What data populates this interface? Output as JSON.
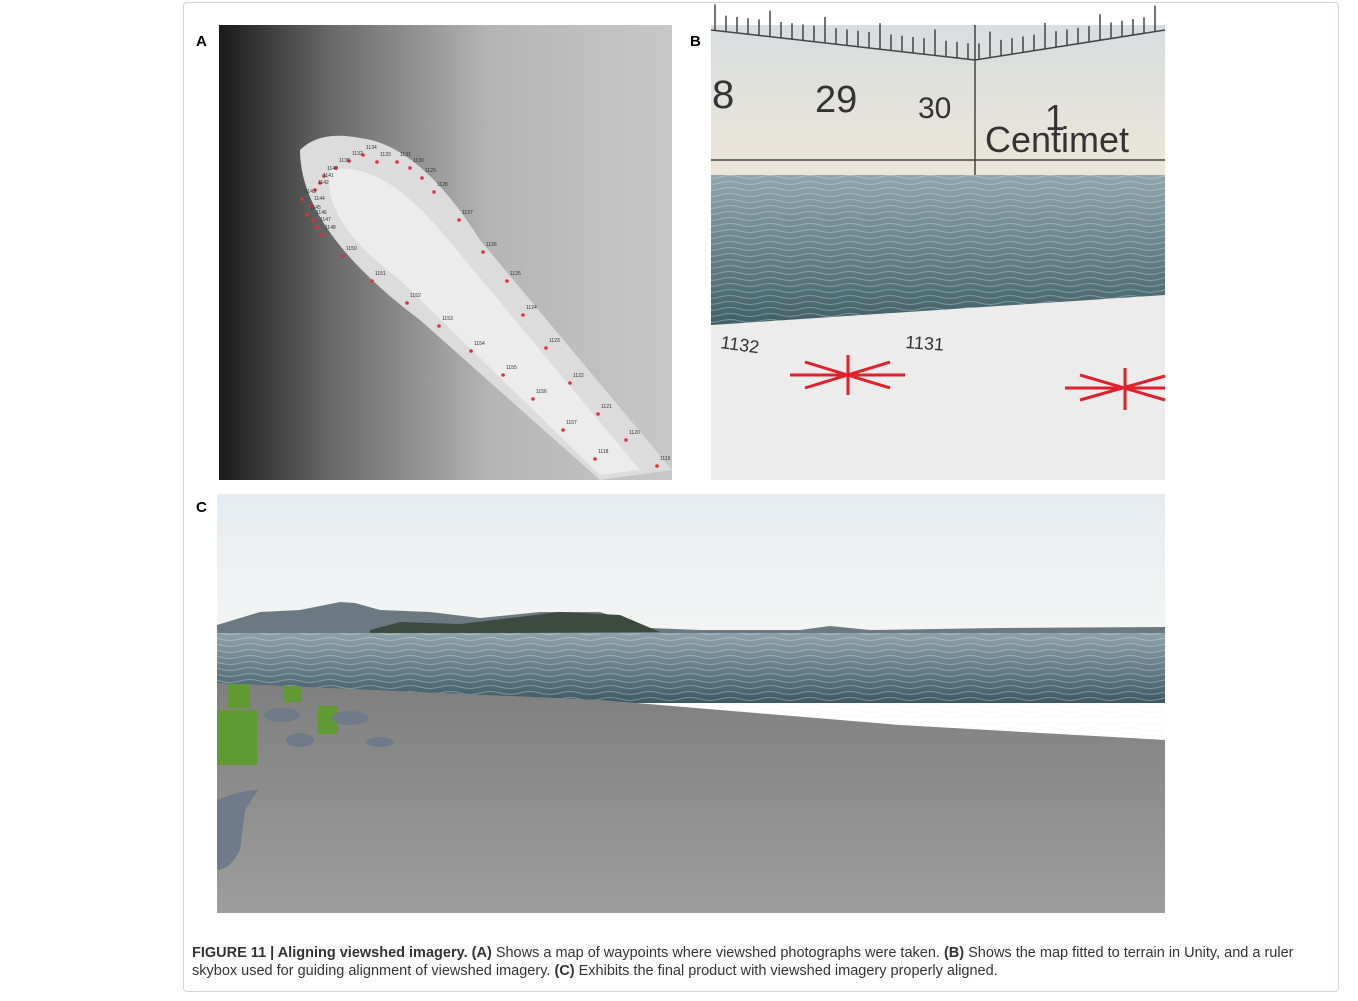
{
  "panels": {
    "A": {
      "label": "A",
      "waypoints": [
        "1134",
        "1133",
        "1132",
        "1131",
        "1130",
        "1129",
        "1128",
        "1127",
        "1126",
        "1125",
        "1124",
        "1123",
        "1122",
        "1121",
        "1120",
        "1119",
        "1118",
        "1157",
        "1156",
        "1155",
        "1154",
        "1153",
        "1152",
        "1151",
        "1150",
        "1138",
        "1140",
        "1141",
        "1142",
        "1143",
        "1144",
        "1145",
        "1146",
        "1147",
        "1148"
      ]
    },
    "B": {
      "label": "B",
      "ruler": [
        "8",
        "29",
        "30",
        "1",
        "Centimet"
      ],
      "waypoints": [
        "1132",
        "1131"
      ]
    },
    "C": {
      "label": "C"
    }
  },
  "caption": {
    "title": "FIGURE 11 | Aligning viewshed imagery.",
    "parts": [
      {
        "label": "(A)",
        "text": "Shows a map of waypoints where viewshed photographs were taken."
      },
      {
        "label": "(B)",
        "text": "Shows the map fitted to terrain in Unity, and a ruler skybox used for guiding alignment of viewshed imagery."
      },
      {
        "label": "(C)",
        "text": "Exhibits the final product with viewshed imagery properly aligned."
      }
    ]
  }
}
